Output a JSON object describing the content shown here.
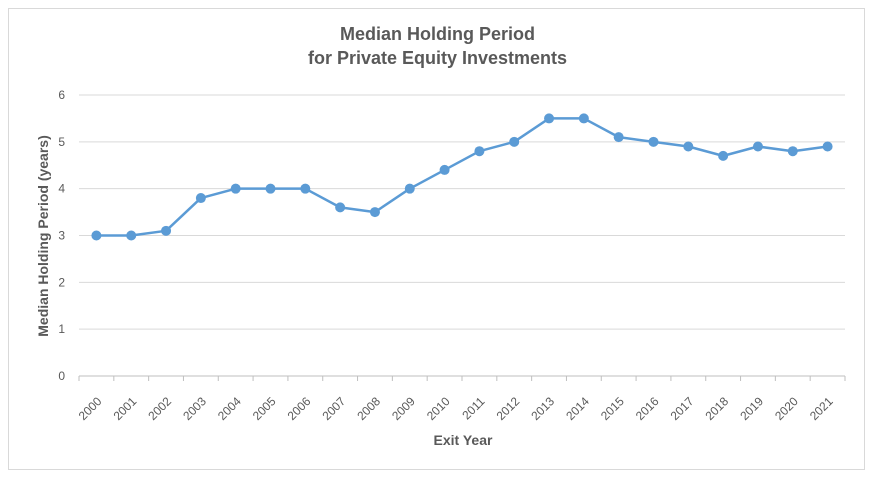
{
  "chart_data": {
    "type": "line",
    "title": "Median Holding Period",
    "subtitle": "for Private Equity Investments",
    "xlabel": "Exit Year",
    "ylabel": "Median Holding Period (years)",
    "ylim": [
      0,
      6
    ],
    "yticks": [
      "0",
      "1",
      "2",
      "3",
      "4",
      "5",
      "6"
    ],
    "grid": true,
    "legend": "none",
    "categories": [
      "2000",
      "2001",
      "2002",
      "2003",
      "2004",
      "2005",
      "2006",
      "2007",
      "2008",
      "2009",
      "2010",
      "2011",
      "2012",
      "2013",
      "2014",
      "2015",
      "2016",
      "2017",
      "2018",
      "2019",
      "2020",
      "2021"
    ],
    "series": [
      {
        "values": [
          3.0,
          3.0,
          3.1,
          3.8,
          4.0,
          4.0,
          4.0,
          3.6,
          3.5,
          4.0,
          4.4,
          4.8,
          5.0,
          5.5,
          5.5,
          5.1,
          5.0,
          4.9,
          4.7,
          4.9,
          4.8,
          4.9
        ],
        "color": "#5b9bd5"
      }
    ],
    "colors": {
      "line": "#5b9bd5",
      "grid": "#d9d9d9",
      "text": "#595959"
    }
  }
}
